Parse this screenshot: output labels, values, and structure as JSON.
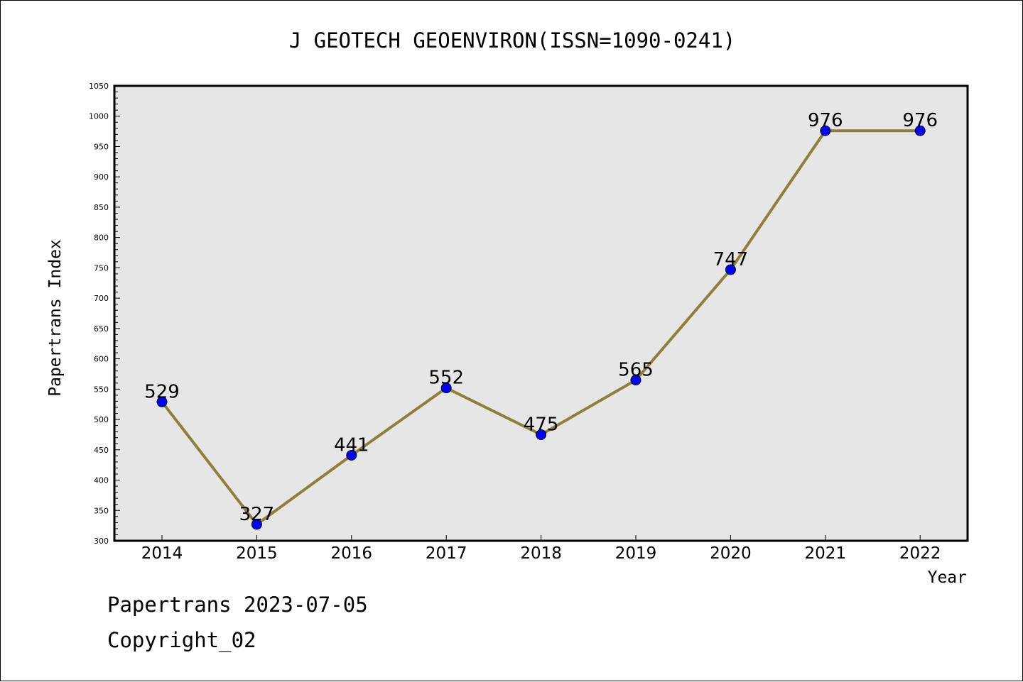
{
  "colors": {
    "line": "#8f7f3b",
    "point": "#0000ff",
    "plot_bg": "#e6e6e6",
    "frame": "#000000"
  },
  "footer": {
    "line1": "Papertrans 2023-07-05",
    "line2": "Copyright_02"
  },
  "chart_data": {
    "type": "line",
    "title": "J GEOTECH GEOENVIRON(ISSN=1090-0241)",
    "xlabel": "Year",
    "ylabel": "Papertrans Index",
    "categories": [
      "2014",
      "2015",
      "2016",
      "2017",
      "2018",
      "2019",
      "2020",
      "2021",
      "2022"
    ],
    "series": [
      {
        "values": [
          529,
          327,
          441,
          552,
          475,
          565,
          747,
          976,
          976
        ]
      }
    ],
    "ylim": [
      300,
      1050
    ],
    "yticks": [
      300,
      350,
      400,
      450,
      500,
      550,
      600,
      650,
      700,
      750,
      800,
      850,
      900,
      950,
      1000,
      1050
    ],
    "grid": false,
    "legend": "none",
    "data_labels": true
  }
}
